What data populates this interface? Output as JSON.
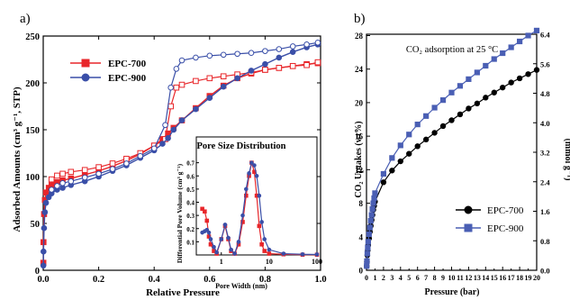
{
  "panels": {
    "a_label": "a)",
    "b_label": "b)"
  },
  "chart_data": [
    {
      "type": "line",
      "panel": "a",
      "xlabel": "Relative Pressure",
      "ylabel": "Adsorbed Amounts (cm³ g⁻¹, STP)",
      "xlim": [
        0,
        1.0
      ],
      "ylim": [
        0,
        250
      ],
      "xticks": [
        "0.0",
        "0.2",
        "0.4",
        "0.6",
        "0.8",
        "1.0"
      ],
      "yticks": [
        "0",
        "50",
        "100",
        "150",
        "200",
        "250"
      ],
      "legend": {
        "placement": "top-left"
      },
      "series": [
        {
          "name": "EPC-700",
          "color": "#e8262a",
          "marker": "square",
          "adsorption": [
            [
              0.0005,
              8
            ],
            [
              0.001,
              30
            ],
            [
              0.003,
              60
            ],
            [
              0.006,
              75
            ],
            [
              0.01,
              83
            ],
            [
              0.02,
              88
            ],
            [
              0.03,
              91
            ],
            [
              0.05,
              94
            ],
            [
              0.07,
              96
            ],
            [
              0.1,
              98
            ],
            [
              0.15,
              102
            ],
            [
              0.2,
              106
            ],
            [
              0.25,
              111
            ],
            [
              0.3,
              117
            ],
            [
              0.35,
              124
            ],
            [
              0.4,
              133
            ],
            [
              0.43,
              140
            ],
            [
              0.45,
              146
            ],
            [
              0.47,
              152
            ],
            [
              0.5,
              160
            ],
            [
              0.55,
              173
            ],
            [
              0.6,
              186
            ],
            [
              0.65,
              197
            ],
            [
              0.7,
              205
            ],
            [
              0.75,
              210
            ],
            [
              0.8,
              214
            ],
            [
              0.85,
              216
            ],
            [
              0.9,
              218
            ],
            [
              0.95,
              220
            ],
            [
              0.99,
              221
            ]
          ],
          "desorption": [
            [
              0.99,
              222
            ],
            [
              0.95,
              219
            ],
            [
              0.9,
              218
            ],
            [
              0.85,
              216
            ],
            [
              0.8,
              214
            ],
            [
              0.75,
              211
            ],
            [
              0.7,
              209
            ],
            [
              0.65,
              207
            ],
            [
              0.6,
              205
            ],
            [
              0.55,
              202
            ],
            [
              0.5,
              198
            ],
            [
              0.48,
              195
            ],
            [
              0.46,
              175
            ],
            [
              0.44,
              140
            ],
            [
              0.4,
              133
            ],
            [
              0.35,
              125
            ],
            [
              0.3,
              119
            ],
            [
              0.25,
              114
            ],
            [
              0.2,
              110
            ],
            [
              0.15,
              107
            ],
            [
              0.1,
              105
            ],
            [
              0.07,
              103
            ],
            [
              0.05,
              101
            ],
            [
              0.03,
              97
            ]
          ]
        },
        {
          "name": "EPC-900",
          "color": "#3a4fa8",
          "marker": "circle",
          "adsorption": [
            [
              0.0005,
              5
            ],
            [
              0.001,
              20
            ],
            [
              0.003,
              45
            ],
            [
              0.006,
              62
            ],
            [
              0.01,
              72
            ],
            [
              0.02,
              78
            ],
            [
              0.03,
              82
            ],
            [
              0.05,
              86
            ],
            [
              0.07,
              88
            ],
            [
              0.1,
              91
            ],
            [
              0.15,
              95
            ],
            [
              0.2,
              100
            ],
            [
              0.25,
              106
            ],
            [
              0.3,
              112
            ],
            [
              0.35,
              120
            ],
            [
              0.4,
              128
            ],
            [
              0.43,
              135
            ],
            [
              0.45,
              141
            ],
            [
              0.47,
              150
            ],
            [
              0.5,
              160
            ],
            [
              0.55,
              172
            ],
            [
              0.6,
              184
            ],
            [
              0.65,
              196
            ],
            [
              0.7,
              205
            ],
            [
              0.75,
              213
            ],
            [
              0.8,
              220
            ],
            [
              0.85,
              227
            ],
            [
              0.9,
              233
            ],
            [
              0.95,
              238
            ],
            [
              0.99,
              241
            ]
          ],
          "desorption": [
            [
              0.99,
              243
            ],
            [
              0.95,
              241
            ],
            [
              0.9,
              239
            ],
            [
              0.85,
              236
            ],
            [
              0.8,
              234
            ],
            [
              0.75,
              232
            ],
            [
              0.7,
              231
            ],
            [
              0.65,
              230
            ],
            [
              0.6,
              229
            ],
            [
              0.55,
              227
            ],
            [
              0.5,
              224
            ],
            [
              0.48,
              215
            ],
            [
              0.46,
              195
            ],
            [
              0.44,
              155
            ],
            [
              0.4,
              130
            ],
            [
              0.35,
              122
            ],
            [
              0.3,
              114
            ],
            [
              0.25,
              108
            ],
            [
              0.2,
              103
            ],
            [
              0.15,
              99
            ],
            [
              0.1,
              95
            ],
            [
              0.07,
              93
            ],
            [
              0.05,
              90
            ],
            [
              0.03,
              86
            ]
          ]
        }
      ],
      "inset": {
        "type": "line",
        "title": "Pore Size Distribution",
        "xlabel": "Pore Width (nm)",
        "ylabel": "Differential Pore Volume (cm³ g⁻¹)",
        "xscale": "log",
        "xlim": [
          0.3,
          100
        ],
        "ylim": [
          0,
          0.8
        ],
        "xticks": [
          "1",
          "10",
          "100"
        ],
        "yticks": [
          "0.1",
          "0.2",
          "0.3",
          "0.4",
          "0.5",
          "0.6",
          "0.7"
        ],
        "series": [
          {
            "name": "EPC-700",
            "color": "#e8262a",
            "marker": "square",
            "points": [
              [
                0.4,
                0.35
              ],
              [
                0.45,
                0.33
              ],
              [
                0.5,
                0.26
              ],
              [
                0.55,
                0.14
              ],
              [
                0.6,
                0.08
              ],
              [
                0.7,
                0.03
              ],
              [
                0.8,
                0.01
              ],
              [
                1.0,
                0.12
              ],
              [
                1.2,
                0.22
              ],
              [
                1.4,
                0.12
              ],
              [
                1.6,
                0.03
              ],
              [
                1.9,
                0.01
              ],
              [
                2.3,
                0.08
              ],
              [
                2.8,
                0.25
              ],
              [
                3.3,
                0.45
              ],
              [
                3.8,
                0.6
              ],
              [
                4.3,
                0.7
              ],
              [
                4.9,
                0.63
              ],
              [
                5.5,
                0.45
              ],
              [
                6.2,
                0.22
              ],
              [
                7,
                0.08
              ],
              [
                8,
                0.03
              ],
              [
                10,
                0.01
              ],
              [
                20,
                0.005
              ],
              [
                50,
                0.002
              ],
              [
                100,
                0.002
              ]
            ]
          },
          {
            "name": "EPC-900",
            "color": "#3a4fa8",
            "marker": "circle",
            "points": [
              [
                0.4,
                0.17
              ],
              [
                0.45,
                0.18
              ],
              [
                0.5,
                0.19
              ],
              [
                0.55,
                0.17
              ],
              [
                0.6,
                0.12
              ],
              [
                0.7,
                0.06
              ],
              [
                0.8,
                0.02
              ],
              [
                1.0,
                0.12
              ],
              [
                1.2,
                0.23
              ],
              [
                1.4,
                0.13
              ],
              [
                1.6,
                0.04
              ],
              [
                1.9,
                0.01
              ],
              [
                2.3,
                0.1
              ],
              [
                2.8,
                0.3
              ],
              [
                3.3,
                0.5
              ],
              [
                3.8,
                0.62
              ],
              [
                4.3,
                0.7
              ],
              [
                4.9,
                0.68
              ],
              [
                5.5,
                0.6
              ],
              [
                6.2,
                0.45
              ],
              [
                7,
                0.25
              ],
              [
                8,
                0.12
              ],
              [
                10,
                0.04
              ],
              [
                20,
                0.01
              ],
              [
                50,
                0.005
              ],
              [
                100,
                0.004
              ]
            ]
          }
        ]
      }
    },
    {
      "type": "line",
      "panel": "b",
      "title": "CO₂ adsorption at 25 °C",
      "xlabel": "Pressure (bar)",
      "ylabel": "CO₂ Uptakes (wt%)",
      "ylabel_right": "(mmol g⁻¹)",
      "xlim": [
        0,
        20
      ],
      "ylim": [
        0,
        28.16
      ],
      "ylim_right": [
        0,
        6.4
      ],
      "xticks": [
        "0",
        "1",
        "2",
        "3",
        "4",
        "5",
        "6",
        "7",
        "8",
        "9",
        "10",
        "11",
        "12",
        "13",
        "14",
        "15",
        "16",
        "17",
        "18",
        "19",
        "20"
      ],
      "yticks": [
        "0",
        "4",
        "8",
        "12",
        "16",
        "20",
        "24",
        "28"
      ],
      "yticks_right": [
        "0.0",
        "0.8",
        "1.6",
        "2.4",
        "3.2",
        "4.0",
        "4.8",
        "5.6",
        "6.4"
      ],
      "legend": {
        "placement": "bottom-center"
      },
      "series": [
        {
          "name": "EPC-700",
          "color": "#000000",
          "marker": "circle",
          "points": [
            [
              0.02,
              0.5
            ],
            [
              0.05,
              1.0
            ],
            [
              0.1,
              1.8
            ],
            [
              0.15,
              2.4
            ],
            [
              0.2,
              3.0
            ],
            [
              0.3,
              3.8
            ],
            [
              0.4,
              4.6
            ],
            [
              0.5,
              5.3
            ],
            [
              0.6,
              6.0
            ],
            [
              0.7,
              6.6
            ],
            [
              0.8,
              7.2
            ],
            [
              0.9,
              7.7
            ],
            [
              1,
              8.2
            ],
            [
              2,
              10.5
            ],
            [
              3,
              11.9
            ],
            [
              4,
              13.0
            ],
            [
              5,
              13.9
            ],
            [
              6,
              14.8
            ],
            [
              7,
              15.6
            ],
            [
              8,
              16.4
            ],
            [
              9,
              17.2
            ],
            [
              10,
              17.9
            ],
            [
              11,
              18.6
            ],
            [
              12,
              19.3
            ],
            [
              13,
              19.9
            ],
            [
              14,
              20.6
            ],
            [
              15,
              21.2
            ],
            [
              16,
              21.8
            ],
            [
              17,
              22.4
            ],
            [
              18,
              22.9
            ],
            [
              19,
              23.4
            ],
            [
              20,
              23.9
            ]
          ]
        },
        {
          "name": "EPC-900",
          "color": "#4a5fb4",
          "marker": "square",
          "points": [
            [
              0.02,
              0.5
            ],
            [
              0.05,
              1.1
            ],
            [
              0.1,
              2.0
            ],
            [
              0.15,
              2.7
            ],
            [
              0.2,
              3.4
            ],
            [
              0.3,
              4.3
            ],
            [
              0.4,
              5.1
            ],
            [
              0.5,
              5.9
            ],
            [
              0.6,
              6.6
            ],
            [
              0.7,
              7.3
            ],
            [
              0.8,
              8.0
            ],
            [
              0.9,
              8.6
            ],
            [
              1,
              9.2
            ],
            [
              2,
              11.5
            ],
            [
              3,
              13.4
            ],
            [
              4,
              14.9
            ],
            [
              5,
              16.2
            ],
            [
              6,
              17.4
            ],
            [
              7,
              18.4
            ],
            [
              8,
              19.4
            ],
            [
              9,
              20.3
            ],
            [
              10,
              21.2
            ],
            [
              11,
              22.0
            ],
            [
              12,
              22.8
            ],
            [
              13,
              23.6
            ],
            [
              14,
              24.4
            ],
            [
              15,
              25.2
            ],
            [
              16,
              25.9
            ],
            [
              17,
              26.6
            ],
            [
              18,
              27.3
            ],
            [
              19,
              28.0
            ],
            [
              20,
              28.6
            ]
          ]
        }
      ]
    }
  ]
}
